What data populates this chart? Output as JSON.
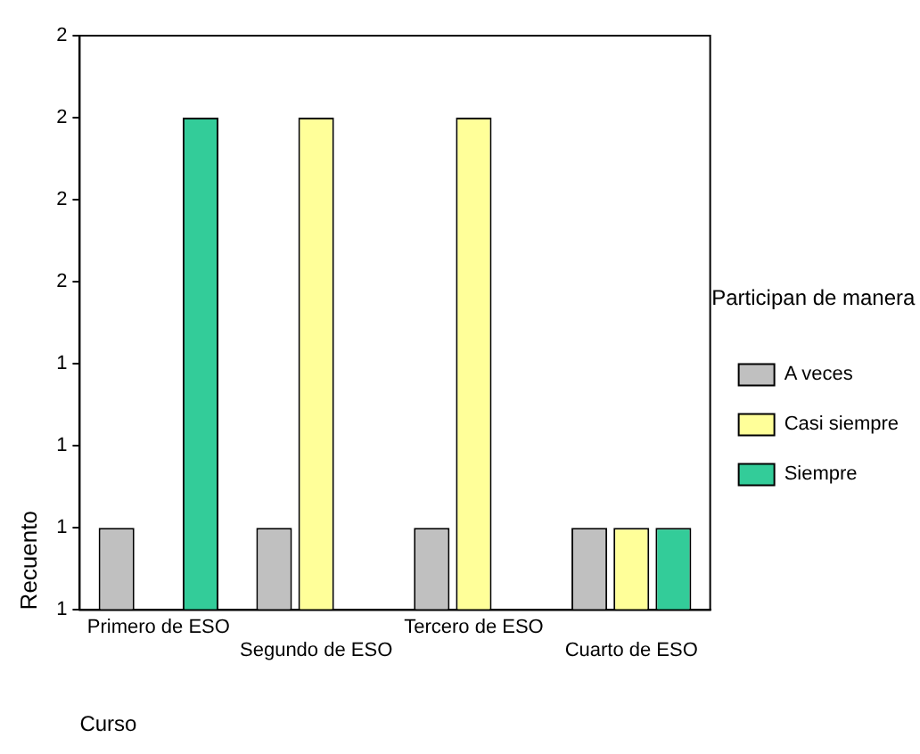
{
  "chart_data": {
    "type": "bar",
    "xlabel": "Curso",
    "ylabel": "Recuento",
    "legend_title": "Participan de manera",
    "categories": [
      "Primero de ESO",
      "Segundo de ESO",
      "Tercero de ESO",
      "Cuarto de ESO"
    ],
    "series": [
      {
        "name": "A veces",
        "color": "#c0c0c0",
        "values": [
          1,
          1,
          1,
          1
        ]
      },
      {
        "name": "Casi siempre",
        "color": "#ffff99",
        "values": [
          null,
          2,
          2,
          1
        ]
      },
      {
        "name": "Siempre",
        "color": "#33cc99",
        "values": [
          2,
          null,
          null,
          1
        ]
      }
    ],
    "ylim": [
      0.8,
      2.2
    ],
    "yticks": [
      {
        "value": 0.8,
        "label": "1"
      },
      {
        "value": 1,
        "label": "1"
      },
      {
        "value": 1.2,
        "label": "1"
      },
      {
        "value": 1.4,
        "label": "1"
      },
      {
        "value": 1.6,
        "label": "2"
      },
      {
        "value": 1.8,
        "label": "2"
      },
      {
        "value": 2,
        "label": "2"
      },
      {
        "value": 2.2,
        "label": "2"
      }
    ],
    "grid": false,
    "legend": "right"
  }
}
